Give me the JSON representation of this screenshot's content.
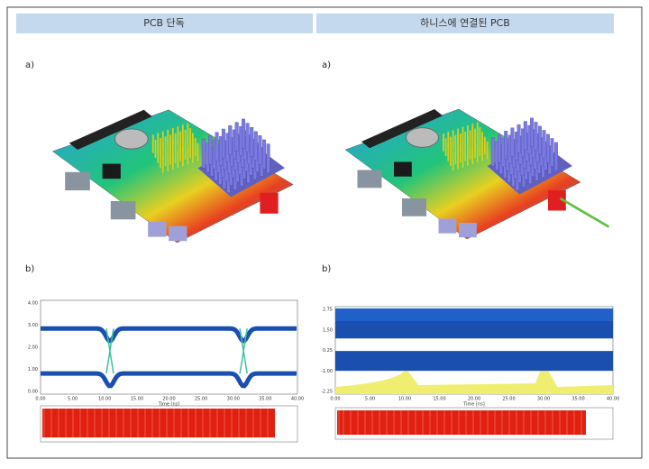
{
  "header": {
    "left": "PCB 단독",
    "right": "하니스에 연결된 PCB"
  },
  "panels": [
    {
      "label_a": "a)",
      "label_b": "b)",
      "chart": {
        "xlabel": "Time [ns]",
        "xticks": [
          "0.00",
          "5.00",
          "10.00",
          "15.00",
          "20.00",
          "25.00",
          "30.00",
          "35.00",
          "40.00"
        ],
        "yticks": [
          "4.00",
          "3.00",
          "2.00",
          "1.00",
          "0.00"
        ]
      }
    },
    {
      "label_a": "a)",
      "label_b": "b)",
      "chart": {
        "xlabel": "Time [ns]",
        "xticks": [
          "0.00",
          "5.00",
          "10.00",
          "15.00",
          "20.00",
          "25.00",
          "30.00",
          "35.00",
          "40.00"
        ],
        "yticks": [
          "2.75",
          "1.50",
          "0.25",
          "-1.00",
          "-2.25"
        ]
      }
    }
  ]
}
